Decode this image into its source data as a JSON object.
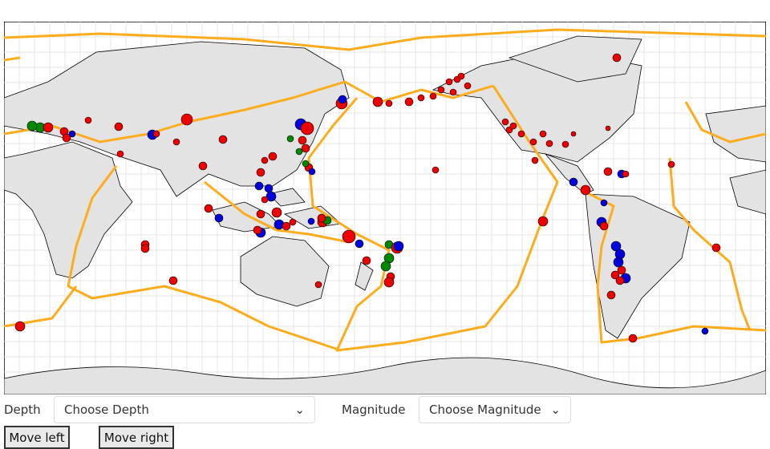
{
  "controls": {
    "depth_label": "Depth",
    "depth_placeholder": "Choose Depth",
    "magnitude_label": "Magnitude",
    "magnitude_placeholder": "Choose Magnitude"
  },
  "buttons": {
    "left": "Move left",
    "right": "Move right"
  }
}
